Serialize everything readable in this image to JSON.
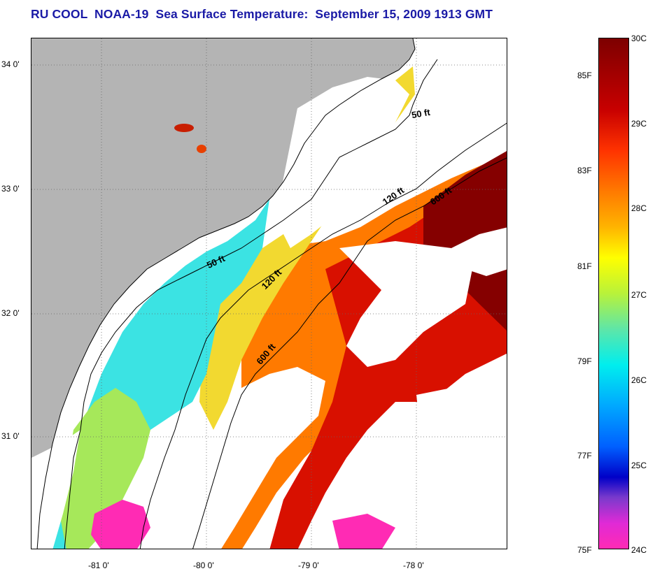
{
  "title": "RU COOL  NOAA-19  Sea Surface Temperature:  September 15, 2009 1913 GMT",
  "map": {
    "lat_labels": [
      "34 0'",
      "33 0'",
      "32 0'",
      "31 0'"
    ],
    "lon_labels": [
      "-81 0'",
      "-80 0'",
      "-79 0'",
      "-78 0'"
    ],
    "contour_labels": [
      "50 ft",
      "50 ft",
      "120 ft",
      "120 ft",
      "600 ft",
      "600 ft"
    ],
    "colors": {
      "land": "#b4b4b4",
      "cloud": "#ffffff",
      "coast": "#000000"
    }
  },
  "colorbar": {
    "fahrenheit_labels": [
      "85F",
      "83F",
      "81F",
      "79F",
      "77F",
      "75F"
    ],
    "celsius_labels": [
      "30C",
      "29C",
      "28C",
      "27C",
      "26C",
      "25C",
      "24C"
    ],
    "gradient_stops": [
      {
        "t": 0.0,
        "color": "#7d0000"
      },
      {
        "t": 0.14,
        "color": "#c80000"
      },
      {
        "t": 0.22,
        "color": "#ff3300"
      },
      {
        "t": 0.3,
        "color": "#ff7a00"
      },
      {
        "t": 0.37,
        "color": "#ffb400"
      },
      {
        "t": 0.43,
        "color": "#ffff00"
      },
      {
        "t": 0.5,
        "color": "#b8f23a"
      },
      {
        "t": 0.57,
        "color": "#5ee6a8"
      },
      {
        "t": 0.64,
        "color": "#00eeee"
      },
      {
        "t": 0.72,
        "color": "#00a8ff"
      },
      {
        "t": 0.8,
        "color": "#0060ff"
      },
      {
        "t": 0.86,
        "color": "#0000c8"
      },
      {
        "t": 0.9,
        "color": "#7a3acc"
      },
      {
        "t": 0.95,
        "color": "#e02ad6"
      },
      {
        "t": 1.0,
        "color": "#ff2bb4"
      }
    ]
  }
}
